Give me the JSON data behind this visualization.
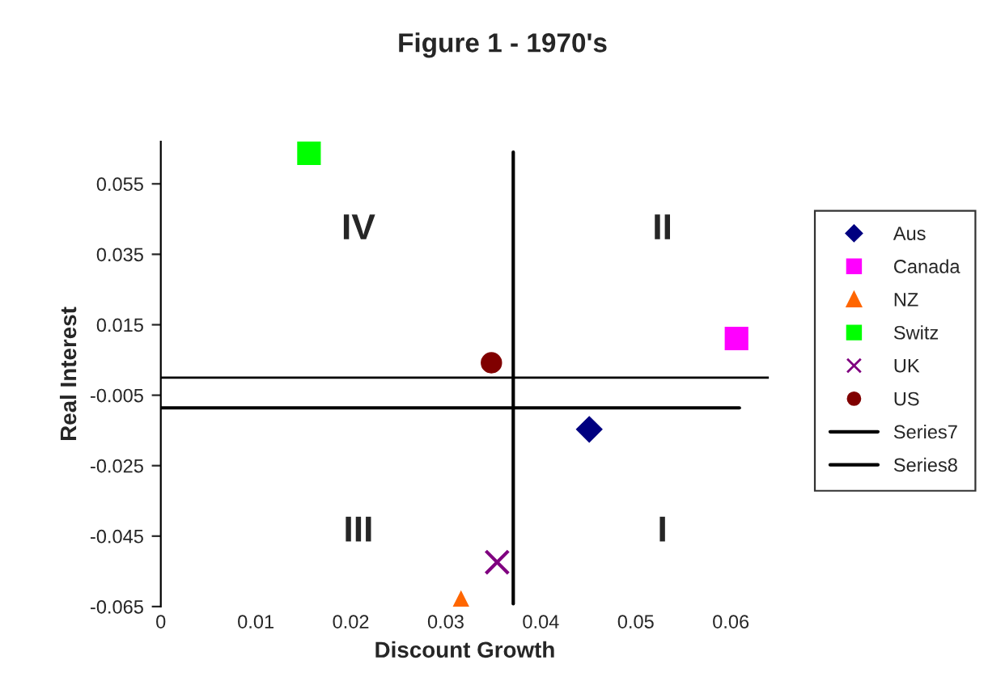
{
  "chart_data": {
    "type": "scatter",
    "title": "Figure 1 - 1970's",
    "xlabel": "Discount Growth",
    "ylabel": "Real Interest",
    "xlim": [
      0,
      0.064
    ],
    "ylim": [
      -0.065,
      0.067
    ],
    "xticks": [
      0,
      0.01,
      0.02,
      0.03,
      0.04,
      0.05,
      0.06
    ],
    "yticks": [
      -0.065,
      -0.045,
      -0.025,
      -0.005,
      0.015,
      0.035,
      0.055
    ],
    "grid": false,
    "legend": "right",
    "ref_lines": [
      {
        "axis": "y",
        "value": 0,
        "color": "#000000"
      }
    ],
    "annotations": [
      "IV",
      "II",
      "III",
      "I"
    ],
    "series": [
      {
        "name": "Aus",
        "color": "#000080",
        "marker": "diamond",
        "x": [
          0.0451
        ],
        "values": [
          -0.0147
        ]
      },
      {
        "name": "Canada",
        "color": "#ff00ff",
        "marker": "square",
        "x": [
          0.0606
        ],
        "values": [
          0.0111
        ]
      },
      {
        "name": "NZ",
        "color": "#ff6600",
        "marker": "triangle",
        "x": [
          0.0316
        ],
        "values": [
          -0.0639
        ]
      },
      {
        "name": "Switz",
        "color": "#00ff00",
        "marker": "square",
        "x": [
          0.0156
        ],
        "values": [
          0.0637
        ]
      },
      {
        "name": "UK",
        "color": "#800080",
        "marker": "cross",
        "x": [
          0.0354
        ],
        "values": [
          -0.0524
        ]
      },
      {
        "name": "US",
        "color": "#800000",
        "marker": "circle",
        "x": [
          0.0348
        ],
        "values": [
          0.0042
        ]
      },
      {
        "name": "Series7",
        "type": "line",
        "color": "#000000",
        "marker": "none",
        "x": [
          0.0371,
          0.0371
        ],
        "values": [
          0.064,
          -0.0642
        ]
      },
      {
        "name": "Series8",
        "type": "line",
        "color": "#000000",
        "marker": "none",
        "x": [
          0,
          0.0609
        ],
        "values": [
          -0.0086,
          -0.0086
        ]
      }
    ]
  }
}
